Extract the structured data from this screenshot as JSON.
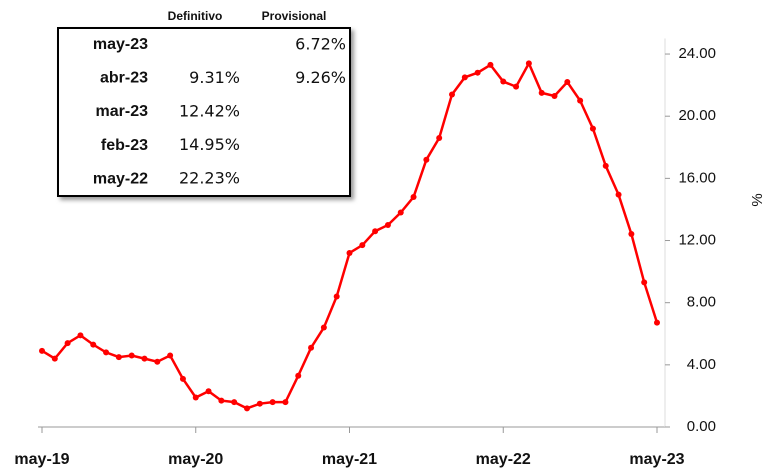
{
  "chart_data": {
    "type": "line",
    "y_label": "%",
    "categories": [
      "may-19",
      null,
      null,
      null,
      null,
      null,
      null,
      null,
      null,
      null,
      null,
      null,
      "may-20",
      null,
      null,
      null,
      null,
      null,
      null,
      null,
      null,
      null,
      null,
      null,
      "may-21",
      null,
      null,
      null,
      null,
      null,
      null,
      null,
      null,
      null,
      null,
      null,
      "may-22",
      null,
      null,
      null,
      null,
      null,
      null,
      null,
      null,
      null,
      null,
      null,
      "may-23"
    ],
    "series": [
      {
        "color": "#ff0000",
        "values": [
          4.9,
          4.4,
          5.4,
          5.9,
          5.3,
          4.8,
          4.5,
          4.6,
          4.4,
          4.2,
          4.6,
          3.1,
          1.9,
          2.3,
          1.7,
          1.6,
          1.2,
          1.5,
          1.6,
          1.6,
          3.3,
          5.1,
          6.4,
          8.4,
          11.2,
          11.7,
          12.6,
          13.0,
          13.8,
          14.8,
          17.2,
          18.6,
          21.4,
          22.5,
          22.8,
          23.3,
          22.23,
          21.9,
          23.4,
          21.5,
          21.3,
          22.2,
          21.0,
          19.2,
          16.8,
          14.95,
          12.42,
          9.31,
          6.72
        ]
      }
    ],
    "ylim": [
      0,
      25
    ],
    "yticks": [
      {
        "value": 0,
        "label": "0.00"
      },
      {
        "value": 4,
        "label": "4.00"
      },
      {
        "value": 8,
        "label": "8.00"
      },
      {
        "value": 12,
        "label": "12.00"
      },
      {
        "value": 16,
        "label": "16.00"
      },
      {
        "value": 20,
        "label": "20.00"
      },
      {
        "value": 24,
        "label": "24.00"
      }
    ],
    "grid": false,
    "table": {
      "columns": [
        "Definitivo",
        "Provisional"
      ],
      "rows": [
        [
          "may-23",
          null,
          "6.72%"
        ],
        [
          "abr-23",
          "9.31%",
          "9.26%"
        ],
        [
          "mar-23",
          "12.42%",
          null
        ],
        [
          "feb-23",
          "14.95%",
          null
        ],
        [
          "may-22",
          "22.23%",
          null
        ]
      ]
    }
  }
}
